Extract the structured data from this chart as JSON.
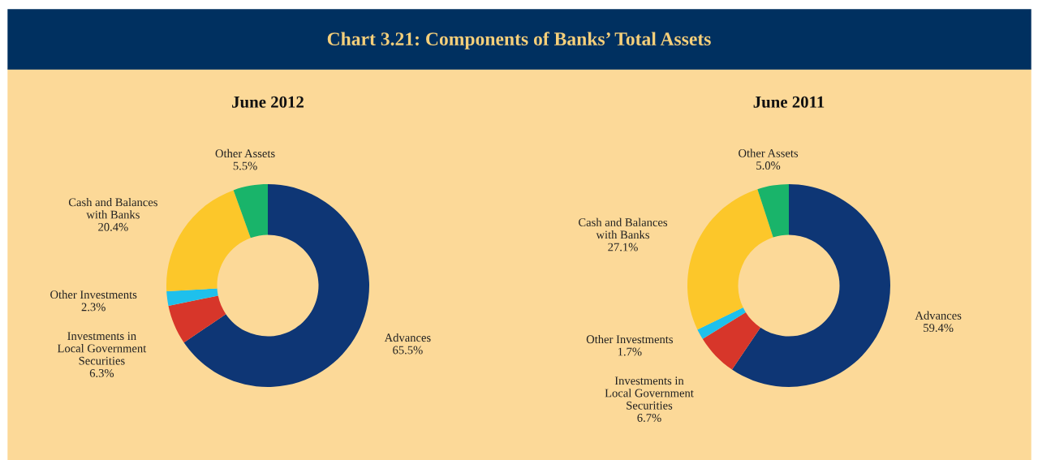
{
  "chart_data": [
    {
      "type": "donut",
      "title": "June 2012",
      "annotations": [
        "Chart 3.21: Components of Banks’ Total Assets"
      ],
      "categories": [
        "Advances",
        "Investments in\nLocal Government\nSecurities",
        "Other Investments",
        "Cash and Balances\nwith Banks",
        "Other Assets"
      ],
      "values": [
        65.5,
        6.3,
        2.3,
        20.4,
        5.5
      ],
      "value_labels": [
        "65.5%",
        "6.3%",
        "2.3%",
        "20.4%",
        "5.5%"
      ],
      "colors": [
        "#0e3675",
        "#d7362a",
        "#1ec0ec",
        "#fcc72a",
        "#19b46a"
      ]
    },
    {
      "type": "donut",
      "title": "June 2011",
      "categories": [
        "Advances",
        "Investments in\nLocal Government\nSecurities",
        "Other Investments",
        "Cash and Balances\nwith Banks",
        "Other Assets"
      ],
      "values": [
        59.4,
        6.7,
        1.7,
        27.1,
        5.0
      ],
      "value_labels": [
        "59.4%",
        "6.7%",
        "1.7%",
        "27.1%",
        "5.0%"
      ],
      "colors": [
        "#0e3675",
        "#d7362a",
        "#1ec0ec",
        "#fcc72a",
        "#19b46a"
      ]
    }
  ]
}
